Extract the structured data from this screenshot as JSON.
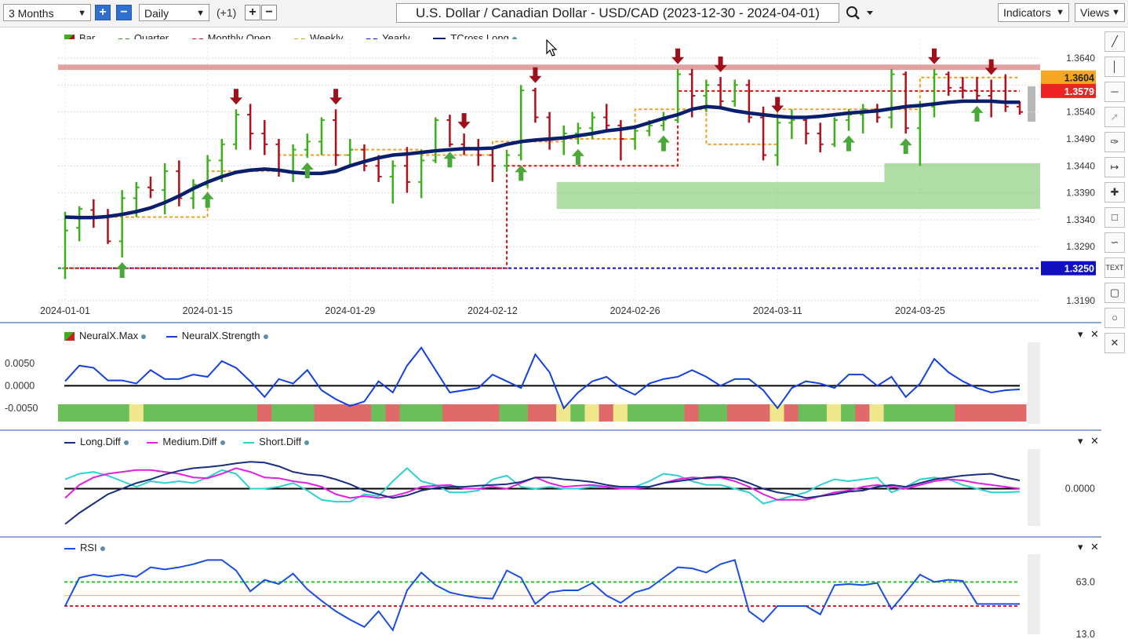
{
  "toolbar": {
    "period": "3 Months",
    "interval": "Daily",
    "offset": "(+1)",
    "title": "U.S. Dollar / Canadian Dollar - USD/CAD (2023-12-30 - 2024-04-01)",
    "indicators_label": "Indicators",
    "views_label": "Views"
  },
  "side_tools": [
    "pen-icon",
    "vertical-line-icon",
    "horizontal-line-icon",
    "ray-icon",
    "brush-icon",
    "measure-icon",
    "crosshair-icon",
    "note-icon",
    "curve-icon",
    "TEXT",
    "rectangle-icon",
    "circle-icon",
    "close-icon"
  ],
  "main_legend": [
    "Bar",
    "Quarter",
    "Monthly Open",
    "Weekly",
    "Yearly",
    "TCross.Long"
  ],
  "neural_legend": [
    "NeuralX.Max",
    "NeuralX.Strength"
  ],
  "diff_legend": [
    "Long.Diff",
    "Medium.Diff",
    "Short.Diff"
  ],
  "rsi_legend": [
    "RSI"
  ],
  "colors": {
    "up_bar": "#3fae1c",
    "down_bar": "#b0101c",
    "tcross": "#0a1f6b",
    "monthly_open": "#e01010",
    "weekly": "#f0a020",
    "yearly": "#1010c0",
    "quarter": "#2a9a2a",
    "strength": "#1440e0",
    "long_diff": "#1a2e80",
    "medium_diff": "#e020e0",
    "short_diff": "#30d0d0",
    "rsi": "#1a4ee0"
  },
  "chart_data": [
    {
      "type": "bar",
      "name": "main",
      "x_labels": [
        "2024-01-01",
        "2024-01-15",
        "2024-01-29",
        "2024-02-12",
        "2024-02-26",
        "2024-03-11",
        "2024-03-25"
      ],
      "y_ticks": [
        1.364,
        1.359,
        1.354,
        1.349,
        1.344,
        1.339,
        1.334,
        1.329,
        1.319
      ],
      "ylim": [
        1.3165,
        1.3675
      ],
      "price_labels": [
        {
          "value": 1.3604,
          "text": "1.3604",
          "color": "#f5a623"
        },
        {
          "value": 1.3579,
          "text": "1.3579",
          "color": "#ee2222"
        },
        {
          "value": 1.325,
          "text": "1.3250",
          "color": "#1010c0"
        }
      ],
      "bars": [
        [
          1.325,
          1.3355,
          1.323,
          1.332
        ],
        [
          1.3325,
          1.3365,
          1.33,
          1.336
        ],
        [
          1.3358,
          1.3378,
          1.3325,
          1.3345
        ],
        [
          1.3345,
          1.336,
          1.3295,
          1.33
        ],
        [
          1.33,
          1.3395,
          1.327,
          1.338
        ],
        [
          1.338,
          1.341,
          1.3345,
          1.34
        ],
        [
          1.34,
          1.342,
          1.338,
          1.3395
        ],
        [
          1.3395,
          1.3445,
          1.335,
          1.343
        ],
        [
          1.343,
          1.345,
          1.3365,
          1.338
        ],
        [
          1.338,
          1.3415,
          1.336,
          1.3405
        ],
        [
          1.3405,
          1.346,
          1.34,
          1.345
        ],
        [
          1.345,
          1.349,
          1.341,
          1.348
        ],
        [
          1.348,
          1.3545,
          1.347,
          1.3535
        ],
        [
          1.3535,
          1.3555,
          1.347,
          1.35
        ],
        [
          1.35,
          1.3525,
          1.346,
          1.348
        ],
        [
          1.348,
          1.349,
          1.342,
          1.343
        ],
        [
          1.343,
          1.348,
          1.341,
          1.347
        ],
        [
          1.347,
          1.35,
          1.3455,
          1.3485
        ],
        [
          1.3485,
          1.353,
          1.346,
          1.3525
        ],
        [
          1.3525,
          1.3545,
          1.344,
          1.346
        ],
        [
          1.346,
          1.349,
          1.344,
          1.347
        ],
        [
          1.347,
          1.348,
          1.343,
          1.344
        ],
        [
          1.344,
          1.346,
          1.341,
          1.342
        ],
        [
          1.342,
          1.345,
          1.337,
          1.344
        ],
        [
          1.344,
          1.3475,
          1.339,
          1.341
        ],
        [
          1.341,
          1.347,
          1.338,
          1.345
        ],
        [
          1.345,
          1.353,
          1.3445,
          1.3525
        ],
        [
          1.3525,
          1.3535,
          1.3475,
          1.348
        ],
        [
          1.348,
          1.35,
          1.346,
          1.347
        ],
        [
          1.347,
          1.349,
          1.344,
          1.346
        ],
        [
          1.346,
          1.3475,
          1.341,
          1.344
        ],
        [
          1.344,
          1.347,
          1.343,
          1.346
        ],
        [
          1.346,
          1.359,
          1.345,
          1.358
        ],
        [
          1.358,
          1.3585,
          1.352,
          1.353
        ],
        [
          1.353,
          1.354,
          1.347,
          1.349
        ],
        [
          1.349,
          1.3515,
          1.346,
          1.35
        ],
        [
          1.35,
          1.352,
          1.348,
          1.351
        ],
        [
          1.351,
          1.354,
          1.349,
          1.353
        ],
        [
          1.353,
          1.3555,
          1.3505,
          1.3515
        ],
        [
          1.3515,
          1.3525,
          1.345,
          1.349
        ],
        [
          1.349,
          1.3515,
          1.347,
          1.3505
        ],
        [
          1.3505,
          1.3525,
          1.3495,
          1.3515
        ],
        [
          1.3515,
          1.354,
          1.3505,
          1.3525
        ],
        [
          1.3525,
          1.362,
          1.352,
          1.361
        ],
        [
          1.361,
          1.362,
          1.353,
          1.357
        ],
        [
          1.357,
          1.36,
          1.354,
          1.359
        ],
        [
          1.359,
          1.3605,
          1.355,
          1.356
        ],
        [
          1.356,
          1.36,
          1.355,
          1.359
        ],
        [
          1.359,
          1.36,
          1.352,
          1.353
        ],
        [
          1.353,
          1.355,
          1.345,
          1.346
        ],
        [
          1.346,
          1.353,
          1.344,
          1.352
        ],
        [
          1.352,
          1.3545,
          1.349,
          1.3525
        ],
        [
          1.3525,
          1.353,
          1.348,
          1.35
        ],
        [
          1.35,
          1.352,
          1.3465,
          1.348
        ],
        [
          1.348,
          1.353,
          1.3475,
          1.3525
        ],
        [
          1.3525,
          1.3545,
          1.3505,
          1.3535
        ],
        [
          1.3535,
          1.3555,
          1.35,
          1.3545
        ],
        [
          1.3545,
          1.3555,
          1.352,
          1.353
        ],
        [
          1.353,
          1.362,
          1.351,
          1.361
        ],
        [
          1.361,
          1.3615,
          1.35,
          1.351
        ],
        [
          1.351,
          1.356,
          1.344,
          1.355
        ],
        [
          1.355,
          1.362,
          1.353,
          1.361
        ],
        [
          1.361,
          1.3615,
          1.357,
          1.3585
        ],
        [
          1.3585,
          1.3605,
          1.3565,
          1.358
        ],
        [
          1.358,
          1.3605,
          1.356,
          1.357
        ],
        [
          1.357,
          1.36,
          1.353,
          1.356
        ],
        [
          1.356,
          1.361,
          1.354,
          1.355
        ],
        [
          1.355,
          1.356,
          1.3535,
          1.354
        ]
      ],
      "tcross": [
        1.3345,
        1.3344,
        1.3344,
        1.3346,
        1.335,
        1.3355,
        1.3362,
        1.3372,
        1.3384,
        1.3398,
        1.341,
        1.342,
        1.3428,
        1.3432,
        1.3434,
        1.3432,
        1.3428,
        1.3426,
        1.3426,
        1.343,
        1.344,
        1.3448,
        1.3455,
        1.346,
        1.3462,
        1.3465,
        1.3468,
        1.347,
        1.3472,
        1.3472,
        1.3473,
        1.348,
        1.3485,
        1.3488,
        1.349,
        1.3492,
        1.3496,
        1.35,
        1.3505,
        1.3508,
        1.3512,
        1.352,
        1.3528,
        1.3535,
        1.3545,
        1.355,
        1.3548,
        1.3542,
        1.3538,
        1.3535,
        1.3532,
        1.353,
        1.353,
        1.3532,
        1.3535,
        1.3538,
        1.354,
        1.3542,
        1.3546,
        1.355,
        1.3552,
        1.3555,
        1.3558,
        1.356,
        1.356,
        1.356,
        1.3558,
        1.3558
      ],
      "monthly_open": [
        [
          0,
          31,
          1.325
        ],
        [
          31,
          43,
          1.344
        ],
        [
          43,
          67,
          1.3579
        ]
      ],
      "weekly_segments": [
        [
          0,
          5,
          1.3345
        ],
        [
          5,
          10,
          1.3345
        ],
        [
          10,
          15,
          1.343
        ],
        [
          15,
          20,
          1.346
        ],
        [
          20,
          25,
          1.347
        ],
        [
          25,
          30,
          1.346
        ],
        [
          30,
          35,
          1.3485
        ],
        [
          35,
          40,
          1.349
        ],
        [
          40,
          45,
          1.3545
        ],
        [
          45,
          50,
          1.348
        ],
        [
          50,
          55,
          1.3545
        ],
        [
          55,
          60,
          1.3545
        ],
        [
          60,
          67,
          1.3604
        ]
      ],
      "resistance_zone": [
        1.3618,
        1.3628
      ],
      "support_zone": [
        [
          35,
          67,
          1.336,
          1.341
        ],
        [
          58,
          67,
          1.341,
          1.3445
        ]
      ],
      "down_arrows": [
        12,
        19,
        28,
        33,
        43,
        46,
        50,
        61,
        65
      ],
      "up_arrows": [
        4,
        10,
        17,
        27,
        32,
        36,
        42,
        55,
        59,
        64
      ]
    },
    {
      "type": "line",
      "name": "neuralx",
      "y_ticks": [
        0.005,
        0.0,
        -0.005
      ],
      "y_tick_labels": [
        "0.0050",
        "0.0000",
        "-0.0050"
      ],
      "ylim": [
        -0.0085,
        0.009
      ],
      "strength": [
        0.001,
        0.0045,
        0.004,
        0.0012,
        0.0012,
        0.0005,
        0.0035,
        0.0015,
        0.0015,
        0.0025,
        0.002,
        0.0055,
        0.004,
        0.001,
        -0.0025,
        0.0015,
        0.0005,
        0.0035,
        -0.001,
        -0.003,
        -0.0045,
        -0.0035,
        0.001,
        -0.0015,
        0.0045,
        0.0085,
        0.0035,
        -0.0015,
        -0.001,
        -0.0005,
        0.0025,
        0.001,
        -0.0005,
        0.007,
        0.003,
        -0.005,
        -0.0015,
        0.001,
        0.002,
        -0.0005,
        -0.002,
        0.0005,
        0.0015,
        0.002,
        0.0035,
        0.002,
        0.0,
        0.0015,
        0.0015,
        -0.001,
        -0.005,
        -0.0005,
        0.001,
        0.0005,
        -0.0005,
        0.0025,
        0.0025,
        0.0,
        0.002,
        -0.0025,
        0.0005,
        0.006,
        0.003,
        0.001,
        -0.0005,
        -0.0015,
        -0.001,
        -0.0008
      ],
      "max_states": [
        "g",
        "g",
        "g",
        "g",
        "g",
        "y",
        "g",
        "g",
        "g",
        "g",
        "g",
        "g",
        "g",
        "g",
        "r",
        "g",
        "g",
        "g",
        "r",
        "r",
        "r",
        "r",
        "g",
        "r",
        "g",
        "g",
        "g",
        "r",
        "r",
        "r",
        "r",
        "g",
        "g",
        "r",
        "r",
        "y",
        "g",
        "y",
        "r",
        "y",
        "g",
        "g",
        "g",
        "g",
        "r",
        "g",
        "g",
        "r",
        "r",
        "r",
        "y",
        "r",
        "g",
        "g",
        "y",
        "g",
        "r",
        "y",
        "g",
        "g",
        "g",
        "g",
        "g",
        "r",
        "r",
        "r",
        "r",
        "r"
      ]
    },
    {
      "type": "line",
      "name": "diff",
      "y_ticks": [
        0.0
      ],
      "y_tick_labels": [
        "0.0000"
      ],
      "ylim": [
        -1.0,
        1.0
      ],
      "long": [
        -0.95,
        -0.65,
        -0.4,
        -0.15,
        0.0,
        0.15,
        0.25,
        0.38,
        0.48,
        0.55,
        0.58,
        0.62,
        0.68,
        0.72,
        0.7,
        0.6,
        0.45,
        0.38,
        0.35,
        0.25,
        0.12,
        -0.05,
        -0.15,
        -0.25,
        -0.18,
        -0.05,
        0.02,
        0.05,
        0.05,
        0.08,
        0.1,
        0.12,
        0.18,
        0.3,
        0.3,
        0.25,
        0.22,
        0.18,
        0.1,
        0.05,
        0.05,
        0.05,
        0.15,
        0.2,
        0.25,
        0.3,
        0.32,
        0.28,
        0.15,
        0.0,
        -0.1,
        -0.15,
        -0.25,
        -0.2,
        -0.15,
        -0.08,
        -0.05,
        0.05,
        0.1,
        0.05,
        0.15,
        0.25,
        0.3,
        0.35,
        0.38,
        0.4,
        0.3,
        0.22
      ],
      "medium": [
        -0.25,
        0.1,
        0.3,
        0.4,
        0.45,
        0.5,
        0.5,
        0.45,
        0.4,
        0.3,
        0.28,
        0.4,
        0.55,
        0.45,
        0.3,
        0.28,
        0.2,
        0.15,
        0.05,
        -0.15,
        -0.25,
        -0.2,
        -0.25,
        -0.2,
        -0.1,
        0.05,
        0.08,
        0.1,
        0.0,
        0.0,
        0.05,
        0.0,
        0.15,
        0.3,
        0.15,
        0.05,
        0.08,
        0.1,
        0.05,
        0.0,
        0.0,
        0.05,
        0.15,
        0.25,
        0.3,
        0.28,
        0.3,
        0.2,
        0.05,
        -0.15,
        -0.3,
        -0.3,
        -0.3,
        -0.2,
        -0.1,
        -0.05,
        0.05,
        0.1,
        0.05,
        0.0,
        0.1,
        0.2,
        0.25,
        0.22,
        0.15,
        0.1,
        0.05,
        0.0
      ],
      "short": [
        0.25,
        0.4,
        0.45,
        0.35,
        0.2,
        0.05,
        0.2,
        0.15,
        0.2,
        0.15,
        0.3,
        0.5,
        0.4,
        0.0,
        0.0,
        0.05,
        0.15,
        -0.05,
        -0.3,
        -0.35,
        -0.35,
        -0.15,
        -0.2,
        0.2,
        0.55,
        0.2,
        0.1,
        -0.1,
        -0.1,
        -0.05,
        0.25,
        0.35,
        0.05,
        0.0,
        0.05,
        0.0,
        0.0,
        0.05,
        0.05,
        0.05,
        0.05,
        0.2,
        0.4,
        0.35,
        0.2,
        0.1,
        0.1,
        0.0,
        -0.1,
        -0.4,
        -0.3,
        -0.2,
        -0.1,
        0.1,
        0.25,
        0.2,
        0.25,
        0.3,
        -0.1,
        0.05,
        0.25,
        0.3,
        0.25,
        0.1,
        0.0,
        -0.1,
        -0.1,
        -0.08
      ]
    },
    {
      "type": "line",
      "name": "rsi",
      "y_ticks": [
        63.0,
        13.0
      ],
      "y_tick_labels": [
        "63.0",
        "13.0"
      ],
      "ylim": [
        13.0,
        88.0
      ],
      "levels": [
        {
          "value": 63.0,
          "color": "#22cc22"
        },
        {
          "value": 50.0,
          "color": "#f2b15a"
        },
        {
          "value": 40.0,
          "color": "#e02020"
        }
      ],
      "rsi": [
        40,
        67,
        70,
        68,
        70,
        68,
        77,
        75,
        77,
        80,
        84,
        84,
        74,
        54,
        65,
        61,
        71,
        56,
        45,
        35,
        27,
        20,
        35,
        17,
        55,
        72,
        60,
        53,
        50,
        48,
        47,
        74,
        67,
        42,
        53,
        55,
        55,
        62,
        50,
        43,
        53,
        57,
        67,
        77,
        76,
        72,
        80,
        84,
        35,
        25,
        40,
        40,
        40,
        32,
        60,
        61,
        60,
        62,
        37,
        53,
        70,
        63,
        65,
        64,
        42,
        42,
        42,
        42
      ]
    }
  ]
}
